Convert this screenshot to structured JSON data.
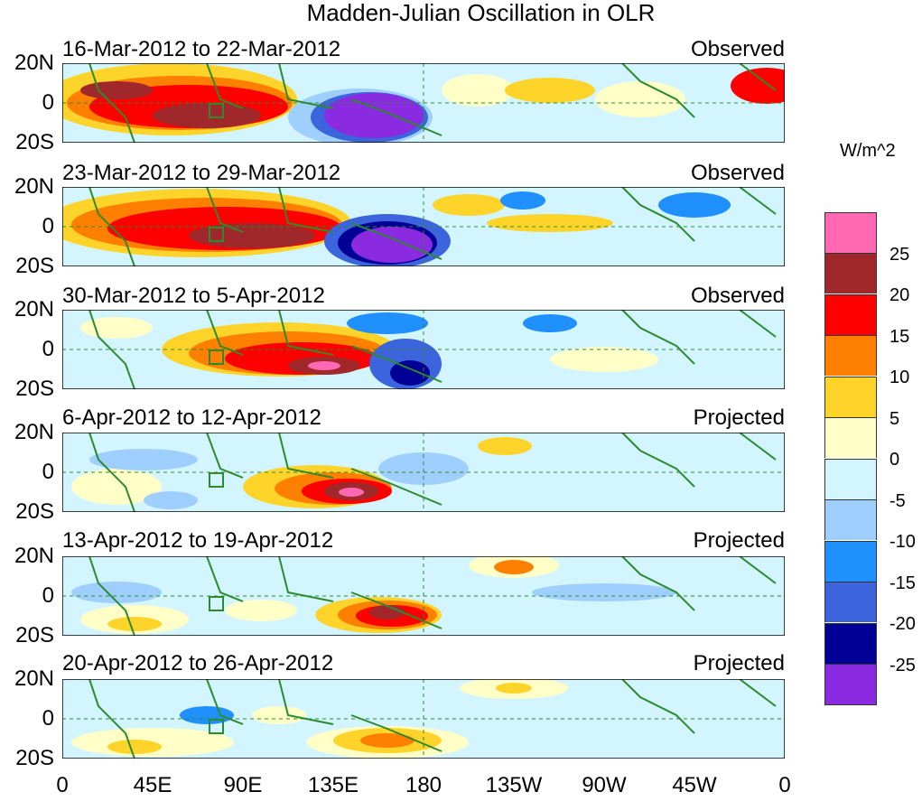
{
  "title": "Madden-Julian Oscillation in OLR",
  "unit": "W/m^2",
  "lat_labels": [
    "20N",
    "0",
    "20S"
  ],
  "lon_labels": [
    "0",
    "45E",
    "90E",
    "135E",
    "180",
    "135W",
    "90W",
    "45W",
    "0"
  ],
  "panels": [
    {
      "dates": "16-Mar-2012 to 22-Mar-2012",
      "kind": "Observed"
    },
    {
      "dates": "23-Mar-2012 to 29-Mar-2012",
      "kind": "Observed"
    },
    {
      "dates": "30-Mar-2012 to 5-Apr-2012",
      "kind": "Observed"
    },
    {
      "dates": "6-Apr-2012 to 12-Apr-2012",
      "kind": "Projected"
    },
    {
      "dates": "13-Apr-2012 to 19-Apr-2012",
      "kind": "Projected"
    },
    {
      "dates": "20-Apr-2012 to 26-Apr-2012",
      "kind": "Projected"
    }
  ],
  "colorbar": {
    "labels": [
      "25",
      "20",
      "15",
      "10",
      "5",
      "0",
      "-5",
      "-10",
      "-15",
      "-20",
      "-25"
    ],
    "colors": [
      "#ff69b4",
      "#a0282a",
      "#ff0000",
      "#ff7f00",
      "#ffd42a",
      "#ffffc8",
      "#d2f5ff",
      "#9fcfff",
      "#2090ff",
      "#3c64dc",
      "#000096",
      "#8a2be2"
    ]
  }
}
